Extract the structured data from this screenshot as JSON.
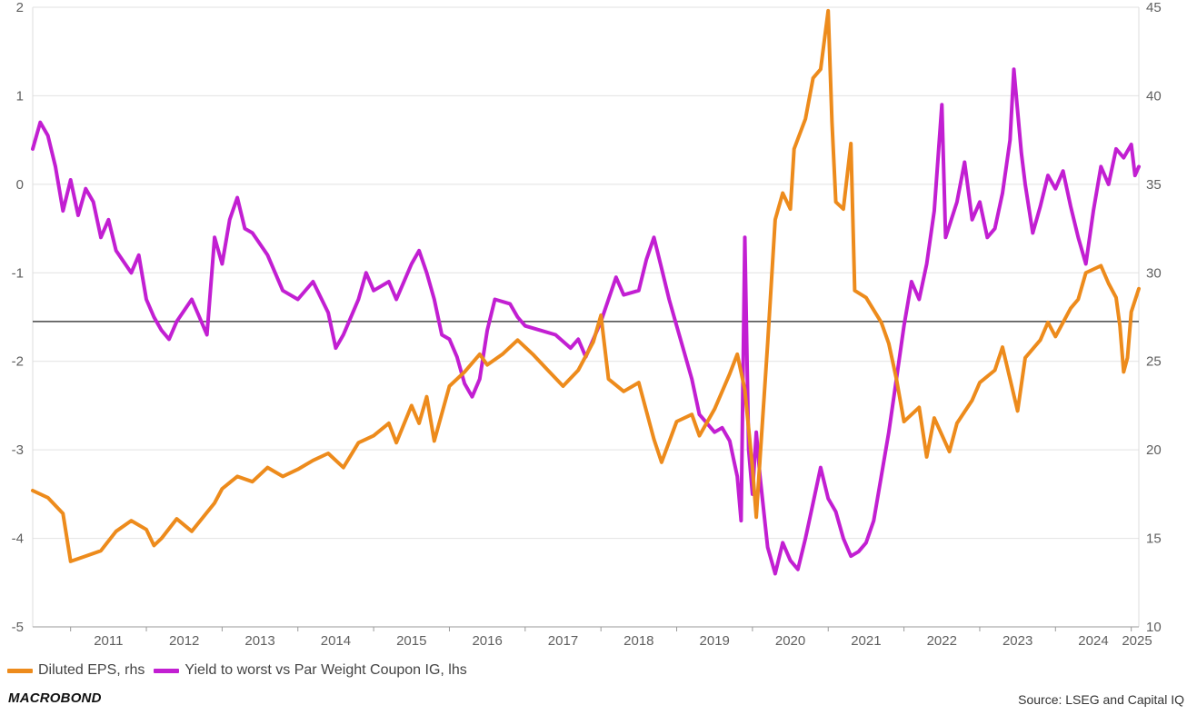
{
  "chart_data": {
    "type": "line",
    "title": "",
    "x_categories": [
      "2011",
      "2012",
      "2013",
      "2014",
      "2015",
      "2016",
      "2017",
      "2018",
      "2019",
      "2020",
      "2021",
      "2022",
      "2023",
      "2024",
      "2025"
    ],
    "x_range": [
      2010.5,
      2025.1
    ],
    "left_axis": {
      "range": [
        -5,
        2
      ],
      "ticks": [
        "2",
        "1",
        "0",
        "-1",
        "-2",
        "-3",
        "-4",
        "-5"
      ],
      "reference_line": -1.55
    },
    "right_axis": {
      "range": [
        10,
        45
      ],
      "ticks": [
        "45",
        "40",
        "35",
        "30",
        "25",
        "20",
        "15",
        "10"
      ]
    },
    "series": [
      {
        "name": "Diluted EPS, rhs",
        "axis": "right",
        "color": "#ED8B1C",
        "points": [
          [
            2010.5,
            17.7
          ],
          [
            2010.7,
            17.3
          ],
          [
            2010.9,
            16.4
          ],
          [
            2011.0,
            13.7
          ],
          [
            2011.2,
            14.0
          ],
          [
            2011.4,
            14.3
          ],
          [
            2011.6,
            15.4
          ],
          [
            2011.8,
            16.0
          ],
          [
            2012.0,
            15.5
          ],
          [
            2012.1,
            14.6
          ],
          [
            2012.2,
            15.0
          ],
          [
            2012.4,
            16.1
          ],
          [
            2012.6,
            15.4
          ],
          [
            2012.9,
            17.0
          ],
          [
            2013.0,
            17.8
          ],
          [
            2013.2,
            18.5
          ],
          [
            2013.4,
            18.2
          ],
          [
            2013.6,
            19.0
          ],
          [
            2013.8,
            18.5
          ],
          [
            2014.0,
            18.9
          ],
          [
            2014.2,
            19.4
          ],
          [
            2014.4,
            19.8
          ],
          [
            2014.6,
            19.0
          ],
          [
            2014.8,
            20.4
          ],
          [
            2015.0,
            20.8
          ],
          [
            2015.2,
            21.5
          ],
          [
            2015.3,
            20.4
          ],
          [
            2015.5,
            22.5
          ],
          [
            2015.6,
            21.5
          ],
          [
            2015.7,
            23.0
          ],
          [
            2015.8,
            20.5
          ],
          [
            2016.0,
            23.6
          ],
          [
            2016.2,
            24.4
          ],
          [
            2016.4,
            25.4
          ],
          [
            2016.5,
            24.8
          ],
          [
            2016.7,
            25.4
          ],
          [
            2016.9,
            26.2
          ],
          [
            2017.1,
            25.4
          ],
          [
            2017.3,
            24.5
          ],
          [
            2017.5,
            23.6
          ],
          [
            2017.7,
            24.5
          ],
          [
            2017.9,
            26.1
          ],
          [
            2018.0,
            27.6
          ],
          [
            2018.1,
            24.0
          ],
          [
            2018.3,
            23.3
          ],
          [
            2018.5,
            23.8
          ],
          [
            2018.7,
            20.6
          ],
          [
            2018.8,
            19.3
          ],
          [
            2019.0,
            21.6
          ],
          [
            2019.2,
            22.0
          ],
          [
            2019.3,
            20.8
          ],
          [
            2019.5,
            22.3
          ],
          [
            2019.7,
            24.3
          ],
          [
            2019.8,
            25.4
          ],
          [
            2019.9,
            23.4
          ],
          [
            2020.0,
            19.0
          ],
          [
            2020.05,
            16.2
          ],
          [
            2020.1,
            19.5
          ],
          [
            2020.2,
            26.0
          ],
          [
            2020.3,
            33.0
          ],
          [
            2020.4,
            34.5
          ],
          [
            2020.5,
            33.6
          ],
          [
            2020.55,
            37.0
          ],
          [
            2020.7,
            38.7
          ],
          [
            2020.8,
            41.0
          ],
          [
            2020.9,
            41.5
          ],
          [
            2021.0,
            44.8
          ],
          [
            2021.05,
            38.5
          ],
          [
            2021.1,
            34.0
          ],
          [
            2021.2,
            33.6
          ],
          [
            2021.3,
            37.3
          ],
          [
            2021.35,
            29.0
          ],
          [
            2021.5,
            28.6
          ],
          [
            2021.7,
            27.2
          ],
          [
            2021.8,
            26.0
          ],
          [
            2021.9,
            24.0
          ],
          [
            2022.0,
            21.6
          ],
          [
            2022.2,
            22.4
          ],
          [
            2022.3,
            19.6
          ],
          [
            2022.4,
            21.8
          ],
          [
            2022.6,
            19.9
          ],
          [
            2022.7,
            21.5
          ],
          [
            2022.9,
            22.8
          ],
          [
            2023.0,
            23.8
          ],
          [
            2023.2,
            24.5
          ],
          [
            2023.3,
            25.8
          ],
          [
            2023.4,
            24.0
          ],
          [
            2023.5,
            22.2
          ],
          [
            2023.6,
            25.2
          ],
          [
            2023.8,
            26.2
          ],
          [
            2023.9,
            27.2
          ],
          [
            2024.0,
            26.4
          ],
          [
            2024.2,
            28.0
          ],
          [
            2024.3,
            28.5
          ],
          [
            2024.4,
            30.0
          ],
          [
            2024.6,
            30.4
          ],
          [
            2024.7,
            29.4
          ],
          [
            2024.8,
            28.6
          ],
          [
            2024.85,
            27.0
          ],
          [
            2024.9,
            24.4
          ],
          [
            2024.95,
            25.2
          ],
          [
            2025.0,
            27.8
          ],
          [
            2025.1,
            29.1
          ]
        ]
      },
      {
        "name": "Yield to worst vs Par Weight Coupon IG, lhs",
        "axis": "left",
        "color": "#C21FD2",
        "points": [
          [
            2010.5,
            0.4
          ],
          [
            2010.6,
            0.7
          ],
          [
            2010.7,
            0.55
          ],
          [
            2010.8,
            0.2
          ],
          [
            2010.9,
            -0.3
          ],
          [
            2011.0,
            0.05
          ],
          [
            2011.1,
            -0.35
          ],
          [
            2011.2,
            -0.05
          ],
          [
            2011.3,
            -0.2
          ],
          [
            2011.4,
            -0.6
          ],
          [
            2011.5,
            -0.4
          ],
          [
            2011.6,
            -0.75
          ],
          [
            2011.8,
            -1.0
          ],
          [
            2011.9,
            -0.8
          ],
          [
            2012.0,
            -1.3
          ],
          [
            2012.1,
            -1.5
          ],
          [
            2012.2,
            -1.65
          ],
          [
            2012.3,
            -1.75
          ],
          [
            2012.4,
            -1.55
          ],
          [
            2012.6,
            -1.3
          ],
          [
            2012.7,
            -1.5
          ],
          [
            2012.8,
            -1.7
          ],
          [
            2012.9,
            -0.6
          ],
          [
            2013.0,
            -0.9
          ],
          [
            2013.1,
            -0.4
          ],
          [
            2013.2,
            -0.15
          ],
          [
            2013.3,
            -0.5
          ],
          [
            2013.4,
            -0.55
          ],
          [
            2013.6,
            -0.8
          ],
          [
            2013.8,
            -1.2
          ],
          [
            2014.0,
            -1.3
          ],
          [
            2014.2,
            -1.1
          ],
          [
            2014.4,
            -1.45
          ],
          [
            2014.5,
            -1.85
          ],
          [
            2014.6,
            -1.7
          ],
          [
            2014.8,
            -1.3
          ],
          [
            2014.9,
            -1.0
          ],
          [
            2015.0,
            -1.2
          ],
          [
            2015.2,
            -1.1
          ],
          [
            2015.3,
            -1.3
          ],
          [
            2015.5,
            -0.9
          ],
          [
            2015.6,
            -0.75
          ],
          [
            2015.7,
            -1.0
          ],
          [
            2015.8,
            -1.3
          ],
          [
            2015.9,
            -1.7
          ],
          [
            2016.0,
            -1.75
          ],
          [
            2016.1,
            -1.95
          ],
          [
            2016.2,
            -2.25
          ],
          [
            2016.3,
            -2.4
          ],
          [
            2016.4,
            -2.2
          ],
          [
            2016.5,
            -1.65
          ],
          [
            2016.6,
            -1.3
          ],
          [
            2016.8,
            -1.35
          ],
          [
            2016.9,
            -1.5
          ],
          [
            2017.0,
            -1.6
          ],
          [
            2017.2,
            -1.65
          ],
          [
            2017.4,
            -1.7
          ],
          [
            2017.6,
            -1.85
          ],
          [
            2017.7,
            -1.75
          ],
          [
            2017.8,
            -1.95
          ],
          [
            2018.0,
            -1.55
          ],
          [
            2018.1,
            -1.3
          ],
          [
            2018.2,
            -1.05
          ],
          [
            2018.3,
            -1.25
          ],
          [
            2018.5,
            -1.2
          ],
          [
            2018.6,
            -0.85
          ],
          [
            2018.7,
            -0.6
          ],
          [
            2018.8,
            -0.95
          ],
          [
            2018.9,
            -1.3
          ],
          [
            2019.0,
            -1.6
          ],
          [
            2019.1,
            -1.9
          ],
          [
            2019.2,
            -2.2
          ],
          [
            2019.3,
            -2.6
          ],
          [
            2019.4,
            -2.7
          ],
          [
            2019.5,
            -2.8
          ],
          [
            2019.6,
            -2.75
          ],
          [
            2019.7,
            -2.9
          ],
          [
            2019.75,
            -3.1
          ],
          [
            2019.8,
            -3.3
          ],
          [
            2019.85,
            -3.8
          ],
          [
            2019.9,
            -0.6
          ],
          [
            2019.95,
            -3.0
          ],
          [
            2020.0,
            -3.5
          ],
          [
            2020.05,
            -2.8
          ],
          [
            2020.1,
            -3.3
          ],
          [
            2020.2,
            -4.1
          ],
          [
            2020.3,
            -4.4
          ],
          [
            2020.4,
            -4.05
          ],
          [
            2020.5,
            -4.25
          ],
          [
            2020.6,
            -4.35
          ],
          [
            2020.7,
            -4.0
          ],
          [
            2020.8,
            -3.6
          ],
          [
            2020.9,
            -3.2
          ],
          [
            2021.0,
            -3.55
          ],
          [
            2021.1,
            -3.7
          ],
          [
            2021.2,
            -4.0
          ],
          [
            2021.3,
            -4.2
          ],
          [
            2021.4,
            -4.15
          ],
          [
            2021.5,
            -4.05
          ],
          [
            2021.6,
            -3.8
          ],
          [
            2021.7,
            -3.3
          ],
          [
            2021.8,
            -2.8
          ],
          [
            2021.9,
            -2.2
          ],
          [
            2022.0,
            -1.6
          ],
          [
            2022.1,
            -1.1
          ],
          [
            2022.2,
            -1.3
          ],
          [
            2022.3,
            -0.9
          ],
          [
            2022.4,
            -0.3
          ],
          [
            2022.5,
            0.9
          ],
          [
            2022.55,
            -0.6
          ],
          [
            2022.7,
            -0.2
          ],
          [
            2022.8,
            0.25
          ],
          [
            2022.9,
            -0.4
          ],
          [
            2023.0,
            -0.2
          ],
          [
            2023.1,
            -0.6
          ],
          [
            2023.2,
            -0.5
          ],
          [
            2023.3,
            -0.1
          ],
          [
            2023.4,
            0.5
          ],
          [
            2023.45,
            1.3
          ],
          [
            2023.55,
            0.35
          ],
          [
            2023.6,
            0.0
          ],
          [
            2023.7,
            -0.55
          ],
          [
            2023.8,
            -0.25
          ],
          [
            2023.9,
            0.1
          ],
          [
            2024.0,
            -0.05
          ],
          [
            2024.1,
            0.15
          ],
          [
            2024.2,
            -0.25
          ],
          [
            2024.3,
            -0.6
          ],
          [
            2024.4,
            -0.9
          ],
          [
            2024.5,
            -0.3
          ],
          [
            2024.6,
            0.2
          ],
          [
            2024.7,
            0.0
          ],
          [
            2024.8,
            0.4
          ],
          [
            2024.9,
            0.3
          ],
          [
            2025.0,
            0.45
          ],
          [
            2025.05,
            0.1
          ],
          [
            2025.1,
            0.2
          ]
        ]
      }
    ],
    "source": "Source: LSEG and Capital IQ"
  },
  "legend": {
    "items": [
      {
        "label": "Diluted EPS, rhs",
        "color": "#ED8B1C"
      },
      {
        "label": "Yield to worst vs Par Weight Coupon IG, lhs",
        "color": "#C21FD2"
      }
    ]
  },
  "branding": {
    "logo": "MACROBOND"
  },
  "footer": {
    "source": "Source: LSEG and Capital IQ"
  }
}
